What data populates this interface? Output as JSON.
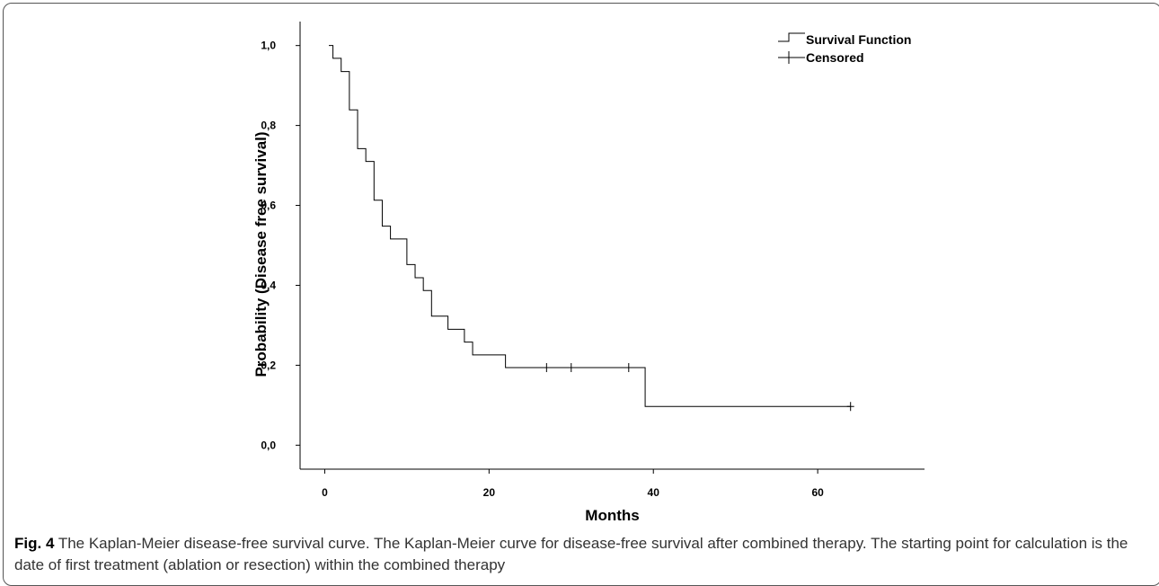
{
  "chart_data": {
    "type": "line",
    "title": "",
    "xlabel": "Months",
    "ylabel": "Probability (Disease free survival)",
    "xlim": [
      -3,
      73
    ],
    "ylim": [
      -0.06,
      1.06
    ],
    "x_ticks": [
      0,
      20,
      40,
      60
    ],
    "x_tick_labels": [
      "0",
      "20",
      "40",
      "60"
    ],
    "y_ticks": [
      0.0,
      0.2,
      0.4,
      0.6,
      0.8,
      1.0
    ],
    "y_tick_labels": [
      "0,0",
      "0,2",
      "0,4",
      "0,6",
      "0,8",
      "1,0"
    ],
    "grid": false,
    "legend": {
      "position": "top-right",
      "entries": [
        "Survival Function",
        "Censored"
      ]
    },
    "series": [
      {
        "name": "Survival Function",
        "step": true,
        "x": [
          0.5,
          1.0,
          2.0,
          3.0,
          4.0,
          5.0,
          6.0,
          7.0,
          8.0,
          10.0,
          11.0,
          12.0,
          13.0,
          15.0,
          17.0,
          18.0,
          22.0,
          39.0,
          64.0
        ],
        "y": [
          1.0,
          0.968,
          0.935,
          0.839,
          0.742,
          0.71,
          0.613,
          0.548,
          0.516,
          0.452,
          0.419,
          0.387,
          0.323,
          0.29,
          0.258,
          0.226,
          0.194,
          0.097,
          0.097
        ]
      },
      {
        "name": "Censored",
        "x": [
          27,
          30,
          37,
          64
        ],
        "y": [
          0.194,
          0.194,
          0.194,
          0.097
        ]
      }
    ]
  },
  "caption": {
    "label": "Fig. 4",
    "text": " The Kaplan-Meier disease-free survival curve. The Kaplan-Meier curve for disease-free survival after combined therapy. The starting point for calculation is the date of first treatment (ablation or resection) within the combined therapy"
  }
}
